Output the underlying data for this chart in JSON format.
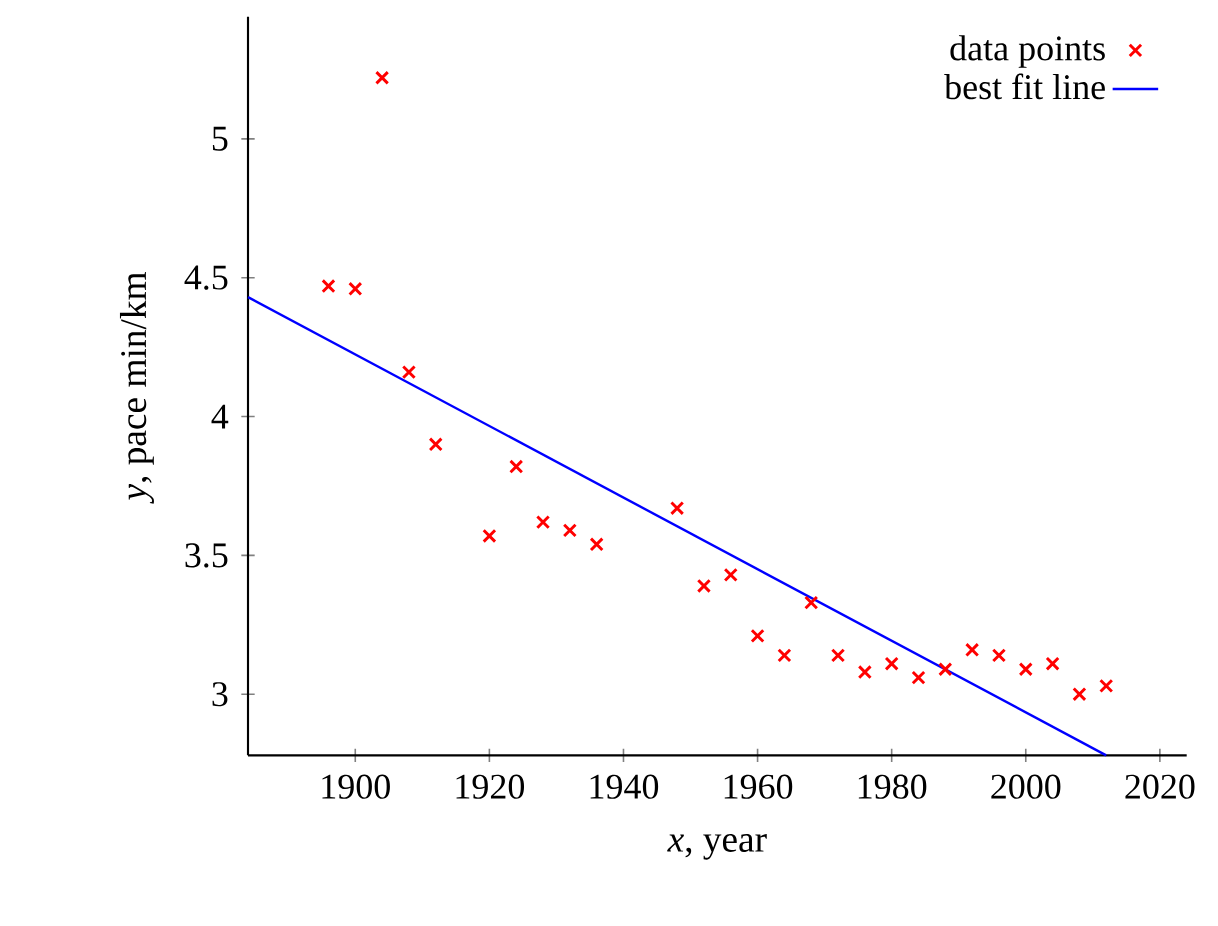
{
  "chart_data": {
    "type": "scatter",
    "xlabel": "*x*, year",
    "ylabel": "*y*, pace min/km",
    "xlim": [
      1884,
      2024
    ],
    "ylim": [
      2.78,
      5.44
    ],
    "xticks": [
      1900,
      1920,
      1940,
      1960,
      1980,
      2000,
      2020
    ],
    "yticks": [
      3,
      3.5,
      4,
      4.5,
      5
    ],
    "grid": false,
    "legend": "top right",
    "series": [
      {
        "name": "data points",
        "marker": "cross",
        "color": "#ff0000",
        "x": [
          1896,
          1900,
          1904,
          1908,
          1912,
          1920,
          1924,
          1928,
          1932,
          1936,
          1948,
          1952,
          1956,
          1960,
          1964,
          1968,
          1972,
          1976,
          1980,
          1984,
          1988,
          1992,
          1996,
          2000,
          2004,
          2008,
          2012
        ],
        "values": [
          4.47,
          4.46,
          5.22,
          4.16,
          3.9,
          3.57,
          3.82,
          3.62,
          3.59,
          3.54,
          3.67,
          3.39,
          3.43,
          3.21,
          3.14,
          3.33,
          3.14,
          3.08,
          3.11,
          3.06,
          3.09,
          3.16,
          3.14,
          3.09,
          3.11,
          3.0,
          3.03
        ]
      },
      {
        "name": "best fit line",
        "type": "line",
        "line_style": "solid",
        "color": "#0000ff",
        "x": [
          1884,
          2012
        ],
        "values": [
          4.43,
          2.78
        ]
      }
    ]
  }
}
